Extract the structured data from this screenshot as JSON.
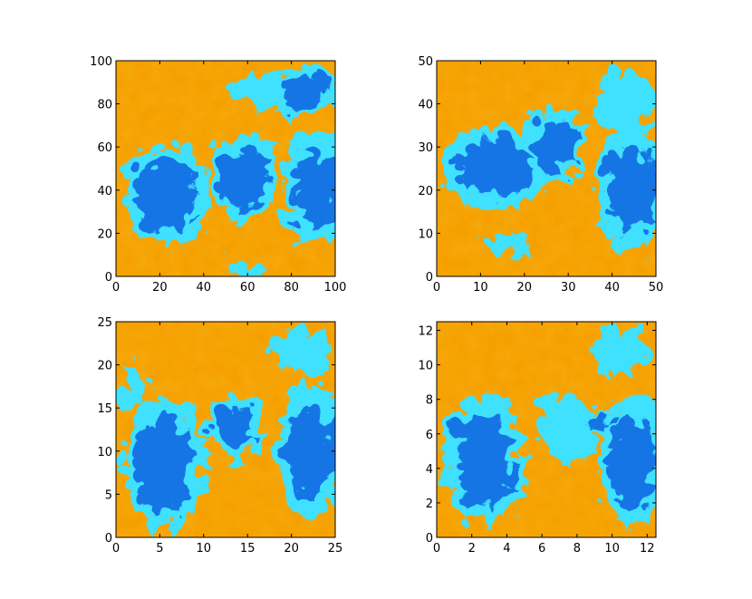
{
  "chart_data": [
    {
      "type": "heatmap",
      "title": "",
      "xlabel": "",
      "ylabel": "",
      "xlim": [
        0,
        100
      ],
      "ylim": [
        0,
        100
      ],
      "xticks": [
        0,
        20,
        40,
        60,
        80,
        100
      ],
      "yticks": [
        0,
        20,
        40,
        60,
        80,
        100
      ],
      "colormap": "jet",
      "colors": {
        "orange": "#f5a000",
        "yellow": "#ffd020",
        "cyan": "#40e0ff",
        "blue": "#1060e0"
      }
    },
    {
      "type": "heatmap",
      "title": "",
      "xlabel": "",
      "ylabel": "",
      "xlim": [
        0,
        50
      ],
      "ylim": [
        0,
        50
      ],
      "xticks": [
        0,
        10,
        20,
        30,
        40,
        50
      ],
      "yticks": [
        0,
        10,
        20,
        30,
        40,
        50
      ],
      "colormap": "jet",
      "colors": {
        "orange": "#f5a000",
        "yellow": "#ffd020",
        "cyan": "#40e0ff",
        "blue": "#1060e0"
      }
    },
    {
      "type": "heatmap",
      "title": "",
      "xlabel": "",
      "ylabel": "",
      "xlim": [
        0,
        25
      ],
      "ylim": [
        0,
        25
      ],
      "xticks": [
        0,
        5,
        10,
        15,
        20,
        25
      ],
      "yticks": [
        0,
        5,
        10,
        15,
        20,
        25
      ],
      "colormap": "jet",
      "colors": {
        "orange": "#f5a000",
        "yellow": "#ffd020",
        "cyan": "#40e0ff",
        "blue": "#1060e0"
      }
    },
    {
      "type": "heatmap",
      "title": "",
      "xlabel": "",
      "ylabel": "",
      "xlim": [
        0,
        12.5
      ],
      "ylim": [
        0,
        12.5
      ],
      "xticks": [
        0,
        2,
        4,
        6,
        8,
        10,
        12
      ],
      "yticks": [
        0,
        2,
        4,
        6,
        8,
        10,
        12
      ],
      "colormap": "jet",
      "colors": {
        "orange": "#f5a000",
        "yellow": "#ffd020",
        "cyan": "#40e0ff",
        "blue": "#1060e0"
      }
    }
  ]
}
